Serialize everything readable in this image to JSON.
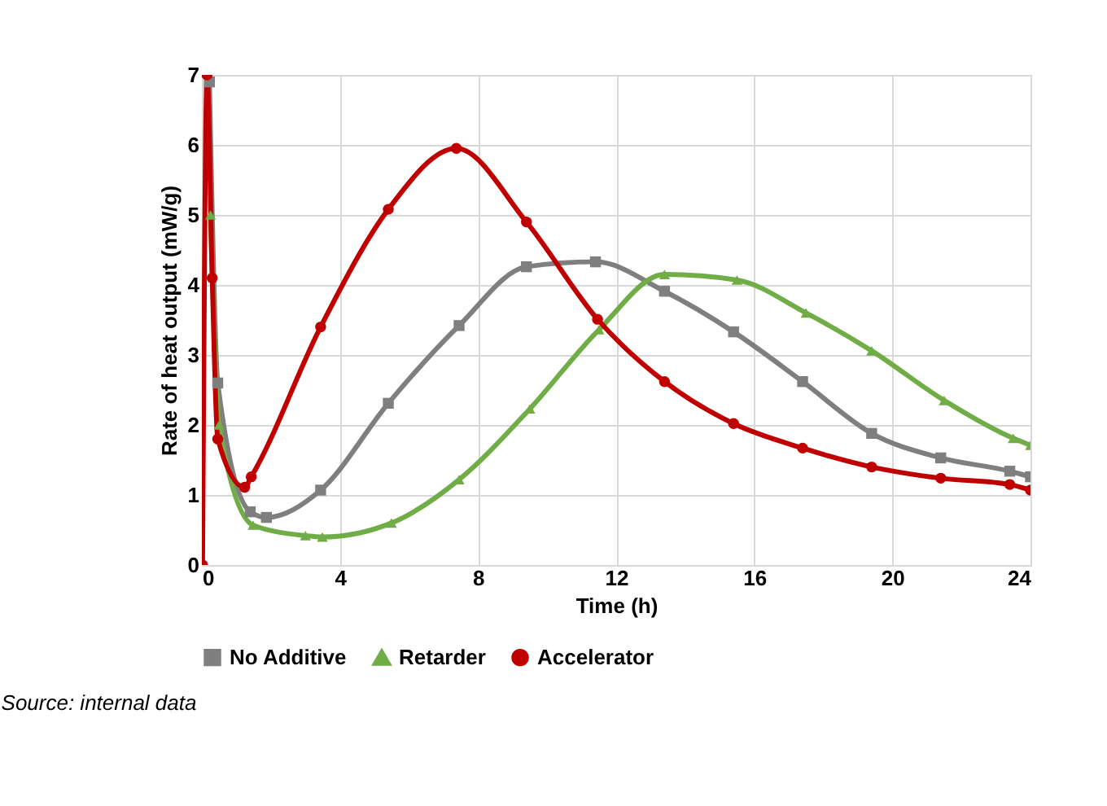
{
  "chart_data": {
    "type": "line",
    "xlabel": "Time (h)",
    "ylabel": "Rate of heat output  (mW/g)",
    "xlim": [
      0,
      24
    ],
    "ylim": [
      0,
      7
    ],
    "xticks": [
      0,
      4,
      8,
      12,
      16,
      20,
      24
    ],
    "yticks": [
      0,
      1,
      2,
      3,
      4,
      5,
      6,
      7
    ],
    "grid": true,
    "legend": "bottom",
    "line_style": "solid",
    "annotations": [
      "Source: internal data"
    ],
    "series": [
      {
        "name": "No Additive",
        "color": "#7f7f7f",
        "marker": "square",
        "x": [
          0.22,
          0.46,
          1.4,
          1.87,
          3.44,
          5.4,
          7.45,
          9.4,
          11.4,
          13.4,
          15.4,
          17.4,
          19.4,
          21.4,
          23.4,
          24
        ],
        "values": [
          6.9,
          2.6,
          0.76,
          0.68,
          1.07,
          2.31,
          3.42,
          4.26,
          4.33,
          3.91,
          3.33,
          2.62,
          1.88,
          1.53,
          1.34,
          1.26
        ]
      },
      {
        "name": "Retarder",
        "color": "#70ad47",
        "marker": "triangle",
        "x": [
          0.25,
          0.5,
          1.48,
          3.0,
          3.49,
          5.49,
          7.45,
          9.5,
          11.5,
          13.4,
          15.5,
          17.5,
          19.4,
          21.5,
          23.5,
          24
        ],
        "values": [
          5.0,
          2.0,
          0.57,
          0.42,
          0.4,
          0.6,
          1.22,
          2.23,
          3.36,
          4.15,
          4.07,
          3.6,
          3.06,
          2.35,
          1.81,
          1.71
        ]
      },
      {
        "name": "Accelerator",
        "color": "#c00000",
        "marker": "circle",
        "x": [
          0.02,
          0.15,
          0.3,
          0.46,
          1.24,
          1.43,
          3.44,
          5.4,
          7.37,
          9.4,
          11.46,
          13.4,
          15.4,
          17.4,
          19.4,
          21.4,
          23.4,
          24
        ],
        "values": [
          0,
          7,
          4.1,
          1.8,
          1.11,
          1.26,
          3.4,
          5.08,
          5.95,
          4.9,
          3.51,
          2.62,
          2.02,
          1.67,
          1.4,
          1.24,
          1.15,
          1.07
        ]
      }
    ]
  }
}
